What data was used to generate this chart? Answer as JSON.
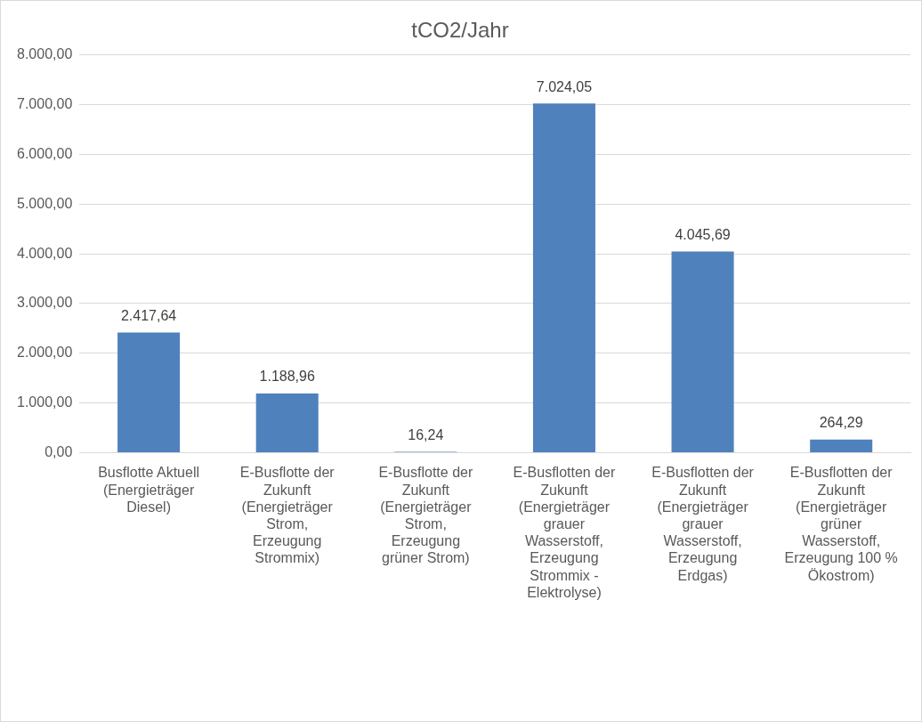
{
  "chart_data": {
    "type": "bar",
    "title": "tCO2/Jahr",
    "categories": [
      "Busflotte Aktuell (Energieträger Diesel)",
      "E-Busflotte der Zukunft (Energieträger Strom, Erzeugung Strommix)",
      "E-Busflotte der Zukunft (Energieträger Strom, Erzeugung grüner Strom)",
      "E-Busflotten der Zukunft (Energieträger grauer Wasserstoff, Erzeugung Strommix - Elektrolyse)",
      "E-Busflotten der Zukunft (Energieträger grauer Wasserstoff, Erzeugung Erdgas)",
      "E-Busflotten der Zukunft (Energieträger grüner Wasserstoff, Erzeugung 100 % Ökostrom)"
    ],
    "values": [
      2417.64,
      1188.96,
      16.24,
      7024.05,
      4045.69,
      264.29
    ],
    "color": "#4f81bd",
    "ylim": [
      0,
      8000
    ],
    "yticks": [
      {
        "value": 0,
        "label": "0,00"
      },
      {
        "value": 1000,
        "label": "1.000,00"
      },
      {
        "value": 2000,
        "label": "2.000,00"
      },
      {
        "value": 3000,
        "label": "3.000,00"
      },
      {
        "value": 4000,
        "label": "4.000,00"
      },
      {
        "value": 5000,
        "label": "5.000,00"
      },
      {
        "value": 6000,
        "label": "6.000,00"
      },
      {
        "value": 7000,
        "label": "7.000,00"
      },
      {
        "value": 8000,
        "label": "8.000,00"
      }
    ],
    "value_labels": [
      "2.417,64",
      "1.188,96",
      "16,24",
      "7.024,05",
      "4.045,69",
      "264,29"
    ],
    "grid": "y",
    "legend": false
  }
}
